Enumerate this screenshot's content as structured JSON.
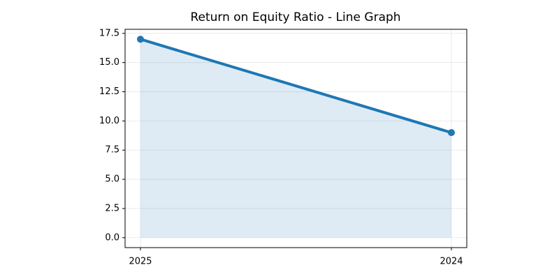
{
  "chart_data": {
    "type": "line",
    "title": "Return on Equity Ratio - Line Graph",
    "categories": [
      "2025",
      "2024"
    ],
    "series": [
      {
        "color": "#1f77b4",
        "values": [
          17,
          9
        ]
      }
    ],
    "fill_area": true,
    "ylim": [
      -0.85,
      17.85
    ],
    "yticks": [
      {
        "value": 0,
        "label": "0.0"
      },
      2.5,
      {
        "value": 5,
        "label": "5.0"
      },
      7.5,
      {
        "value": 10,
        "label": "10.0"
      },
      12.5,
      {
        "value": 15,
        "label": "15.0"
      },
      17.5
    ],
    "grid": true
  }
}
